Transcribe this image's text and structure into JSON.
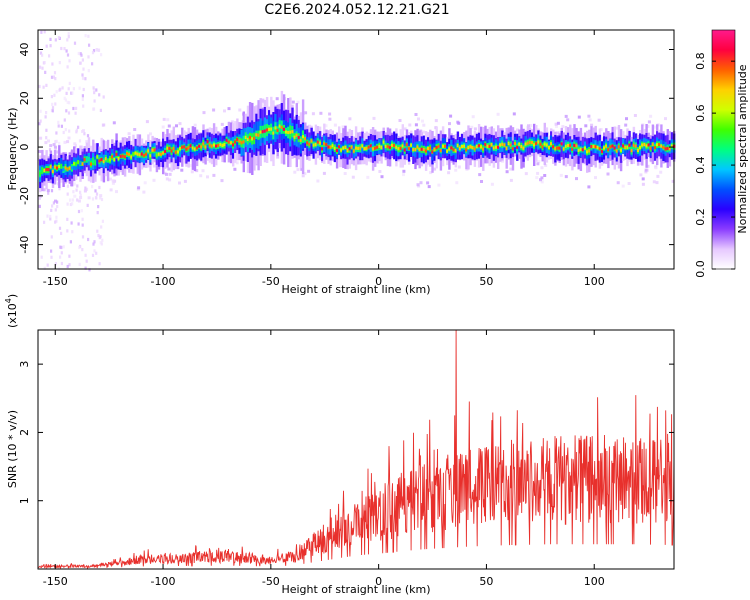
{
  "figure_title": "C2E6.2024.052.12.21.G21",
  "chart_data": [
    {
      "type": "heatmap",
      "title": "",
      "xlabel": "Height of straight line (km)",
      "ylabel": "Frequency (Hz)",
      "xlim": [
        -158,
        137
      ],
      "ylim": [
        -50,
        48
      ],
      "x_ticks": [
        -150,
        -100,
        -50,
        0,
        50,
        100
      ],
      "y_ticks": [
        -40,
        -20,
        0,
        20,
        40
      ],
      "colorbar": {
        "label": "Normalized spectral amplitude",
        "range": [
          0,
          0.92
        ],
        "ticks": [
          "0.0",
          "0.2",
          "0.4",
          "0.6",
          "0.8"
        ],
        "colormap": [
          "#ffffff",
          "#e6c8ff",
          "#8a3cff",
          "#2a00ff",
          "#0050ff",
          "#00c8ff",
          "#00ff80",
          "#40ff00",
          "#d0ff00",
          "#ffd000",
          "#ff6000",
          "#ff0040",
          "#ff1a8c"
        ]
      },
      "ridge": {
        "x": [
          -158,
          -145,
          -130,
          -110,
          -95,
          -80,
          -65,
          -55,
          -45,
          -35,
          -25,
          -10,
          0,
          25,
          50,
          75,
          100,
          125,
          137
        ],
        "frequency_hz": [
          -10,
          -8,
          -5,
          -3,
          -1,
          1,
          2,
          5,
          8,
          3,
          0,
          -1,
          1,
          -1,
          0,
          1,
          -1,
          0,
          0
        ],
        "peak_amplitude": 0.85
      }
    },
    {
      "type": "line",
      "title": "",
      "xlabel": "Height of straight line (km)",
      "ylabel": "SNR (10 * v/v)",
      "y_multiplier_label": "(x10",
      "y_multiplier_exp": "4",
      "xlim": [
        -158,
        137
      ],
      "ylim": [
        0,
        3.5
      ],
      "x_ticks": [
        -150,
        -100,
        -50,
        0,
        50,
        100
      ],
      "y_ticks": [
        1,
        2,
        3
      ],
      "line_color": "#e8302c",
      "envelope": {
        "x": [
          -158,
          -130,
          -110,
          -90,
          -70,
          -50,
          -40,
          -30,
          -20,
          -10,
          0,
          20,
          40,
          60,
          80,
          100,
          120,
          137
        ],
        "snr_x1e4": [
          0.04,
          0.05,
          0.15,
          0.18,
          0.2,
          0.15,
          0.2,
          0.4,
          0.6,
          0.8,
          0.9,
          1.15,
          1.3,
          1.4,
          1.45,
          1.45,
          1.45,
          1.4
        ]
      },
      "peak": {
        "x": 36,
        "snr_x1e4": 3.5
      }
    }
  ]
}
